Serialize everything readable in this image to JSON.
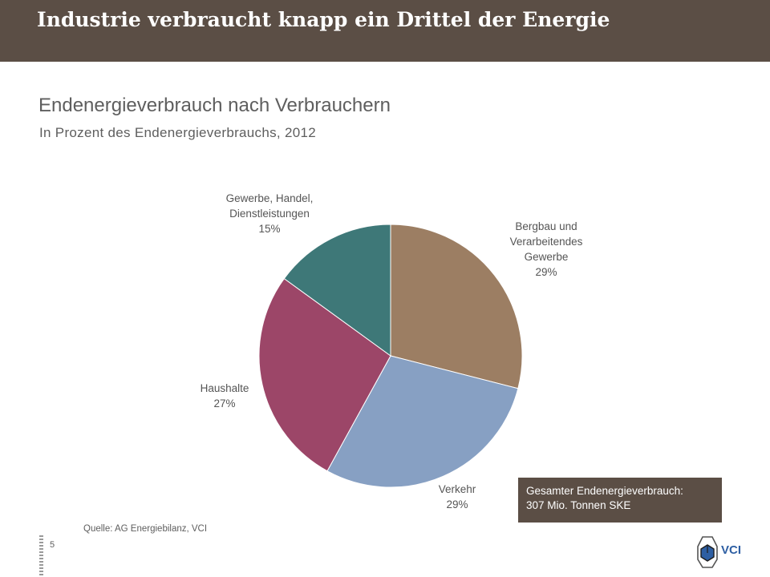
{
  "header": {
    "title": "Industrie verbraucht knapp ein Drittel der Energie"
  },
  "chart_data": {
    "type": "pie",
    "title": "Endenergieverbrauch nach Verbrauchern",
    "subtitle": "In Prozent des Endenergieverbrauchs, 2012",
    "unit": "%",
    "start_angle_deg": 0,
    "direction": "clockwise",
    "slices": [
      {
        "label_lines": [
          "Bergbau und",
          "Verarbeitendes",
          "Gewerbe"
        ],
        "value": 29,
        "value_label": "29%",
        "color": "#9c7e63"
      },
      {
        "label_lines": [
          "Verkehr"
        ],
        "value": 29,
        "value_label": "29%",
        "color": "#87a0c3"
      },
      {
        "label_lines": [
          "Haushalte"
        ],
        "value": 27,
        "value_label": "27%",
        "color": "#9c4668"
      },
      {
        "label_lines": [
          "Gewerbe, Handel,",
          "Dienstleistungen"
        ],
        "value": 15,
        "value_label": "15%",
        "color": "#3e7878"
      }
    ]
  },
  "total_box": {
    "line1": "Gesamter Endenergieverbrauch:",
    "line2": "307  Mio. Tonnen SKE"
  },
  "source": "Quelle:  AG Energiebilanz,  VCI",
  "page_number": "5",
  "logo": {
    "text": "VCI",
    "icon": "vci-hexagon-logo-icon"
  }
}
